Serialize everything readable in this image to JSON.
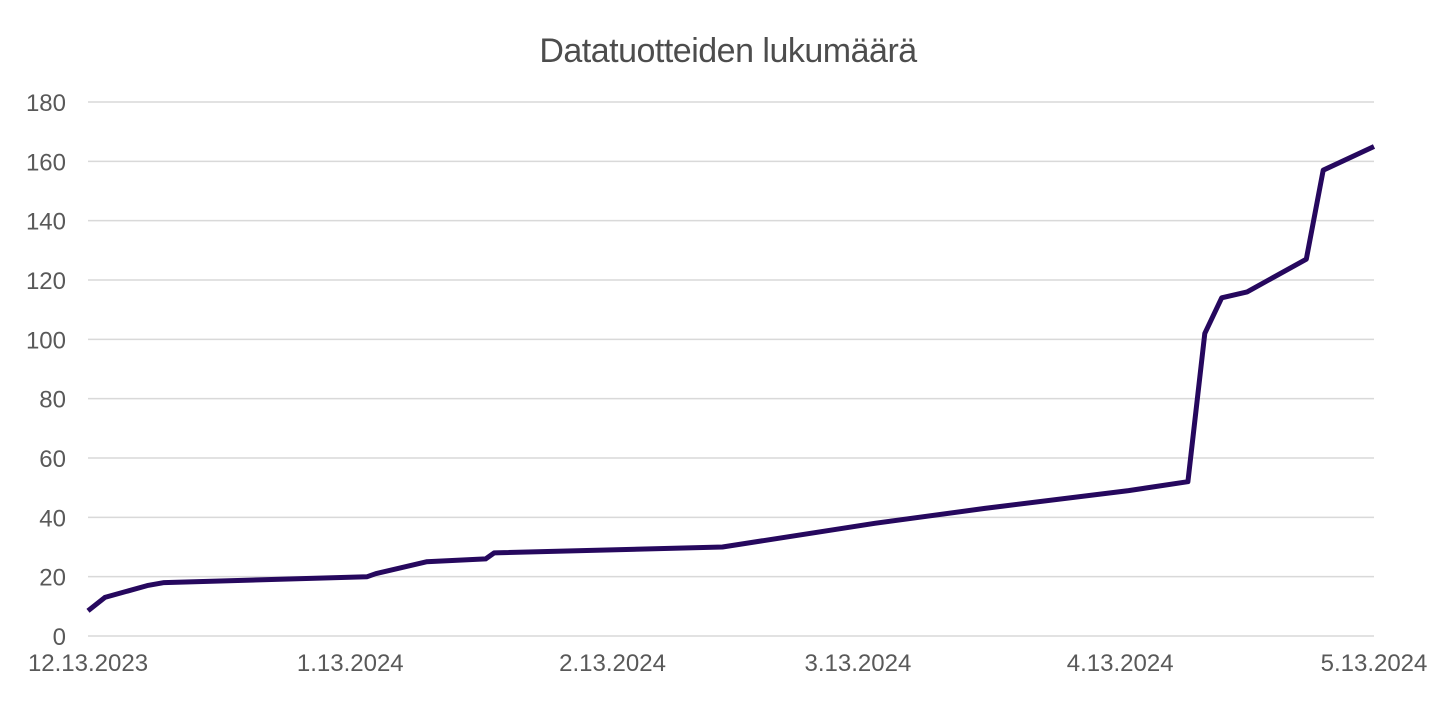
{
  "chart_data": {
    "type": "line",
    "title": "Datatuotteiden lukumäärä",
    "xlabel": "",
    "ylabel": "",
    "ylim": [
      0,
      180
    ],
    "yticks": [
      0,
      20,
      40,
      60,
      80,
      100,
      120,
      140,
      160,
      180
    ],
    "xlim": [
      "12.13.2023",
      "5.13.2024"
    ],
    "xticks": [
      "12.13.2023",
      "1.13.2024",
      "2.13.2024",
      "3.13.2024",
      "4.13.2024",
      "5.13.2024"
    ],
    "xtick_days": [
      0,
      31,
      62,
      91,
      122,
      152
    ],
    "grid": "horizontal",
    "legend": "none",
    "line_color": "#26085e",
    "grid_color": "#d9d9d9",
    "series": [
      {
        "name": "Datatuotteiden lukumäärä",
        "x_days_since_start": [
          0,
          2,
          7,
          9,
          33,
          34,
          40,
          47,
          48,
          75,
          93,
          106,
          123,
          130,
          132,
          134,
          137,
          144,
          146,
          152
        ],
        "values": [
          8.5,
          13,
          17,
          18,
          20,
          21,
          25,
          26,
          28,
          30,
          38,
          43,
          49,
          52,
          102,
          114,
          116,
          127,
          157,
          165
        ]
      }
    ]
  }
}
